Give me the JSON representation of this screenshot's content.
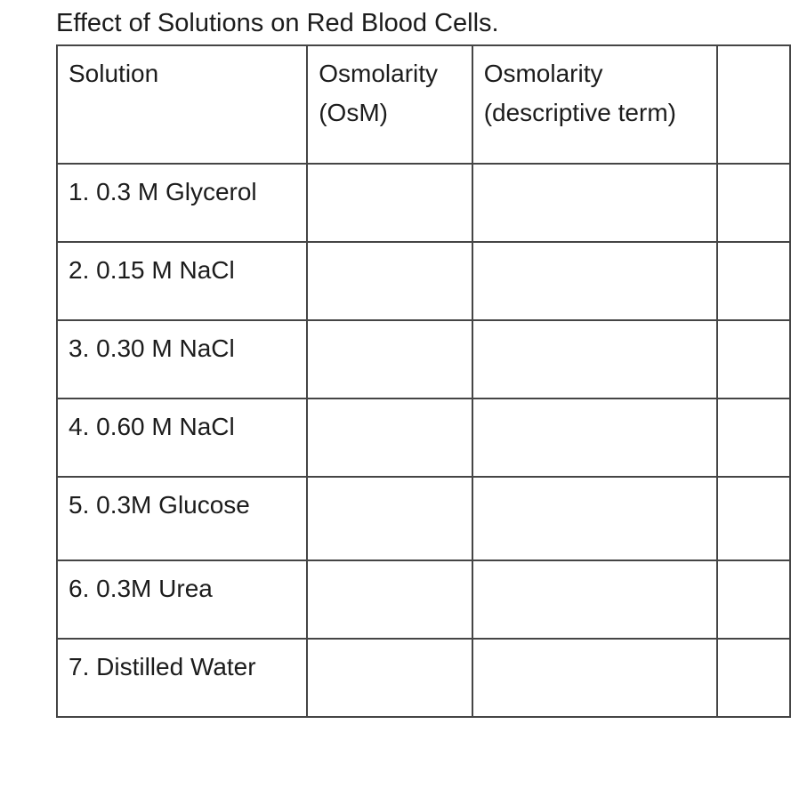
{
  "document": {
    "title": "Effect of Solutions on Red Blood Cells.",
    "colors": {
      "background": "#ffffff",
      "text": "#1c1c1c",
      "table_border": "#454545"
    },
    "table": {
      "header": {
        "solution": "Solution",
        "osmolarity_line1": "Osmolarity",
        "osmolarity_line2": "(OsM)",
        "descriptive_line1": "Osmolarity",
        "descriptive_line2": "(descriptive term)"
      },
      "rows": [
        {
          "solution": "1. 0.3 M Glycerol",
          "osmolarity": "",
          "descriptive": ""
        },
        {
          "solution": "2. 0.15 M NaCl",
          "osmolarity": "",
          "descriptive": ""
        },
        {
          "solution": "3. 0.30 M NaCl",
          "osmolarity": "",
          "descriptive": ""
        },
        {
          "solution": "4. 0.60 M NaCl",
          "osmolarity": "",
          "descriptive": ""
        },
        {
          "solution": "5. 0.3M Glucose",
          "osmolarity": "",
          "descriptive": ""
        },
        {
          "solution": "6. 0.3M Urea",
          "osmolarity": "",
          "descriptive": ""
        },
        {
          "solution": "7. Distilled Water",
          "osmolarity": "",
          "descriptive": ""
        }
      ]
    }
  }
}
